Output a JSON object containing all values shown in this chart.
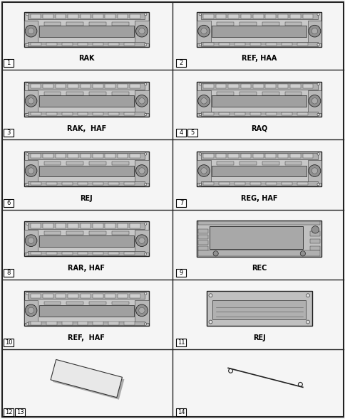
{
  "background": "#f5f5f5",
  "grid_color": "#222222",
  "cells": [
    {
      "row": 0,
      "col": 0,
      "label": "RAK",
      "num": "1",
      "num2": null,
      "style": "rak"
    },
    {
      "row": 0,
      "col": 1,
      "label": "REF, HAA",
      "num": "2",
      "num2": null,
      "style": "ref_haa"
    },
    {
      "row": 1,
      "col": 0,
      "label": "RAK,  HAF",
      "num": "3",
      "num2": null,
      "style": "rak_haf"
    },
    {
      "row": 1,
      "col": 1,
      "label": "RAQ",
      "num": "4",
      "num2": "5",
      "style": "raq"
    },
    {
      "row": 2,
      "col": 0,
      "label": "REJ",
      "num": "6",
      "num2": null,
      "style": "rej"
    },
    {
      "row": 2,
      "col": 1,
      "label": "REG, HAF",
      "num": "7",
      "num2": null,
      "style": "reg_haf"
    },
    {
      "row": 3,
      "col": 0,
      "label": "RAR, HAF",
      "num": "8",
      "num2": null,
      "style": "rar_haf"
    },
    {
      "row": 3,
      "col": 1,
      "label": "REC",
      "num": "9",
      "num2": null,
      "style": "rec"
    },
    {
      "row": 4,
      "col": 0,
      "label": "REF,  HAF",
      "num": "10",
      "num2": null,
      "style": "ref_haf"
    },
    {
      "row": 4,
      "col": 1,
      "label": "REJ",
      "num": "11",
      "num2": null,
      "style": "rear_rej"
    },
    {
      "row": 5,
      "col": 0,
      "label": null,
      "num": "12",
      "num2": "13",
      "style": "card"
    },
    {
      "row": 5,
      "col": 1,
      "label": null,
      "num": "14",
      "num2": null,
      "style": "antenna"
    }
  ],
  "label_fontsize": 7,
  "num_fontsize": 6
}
